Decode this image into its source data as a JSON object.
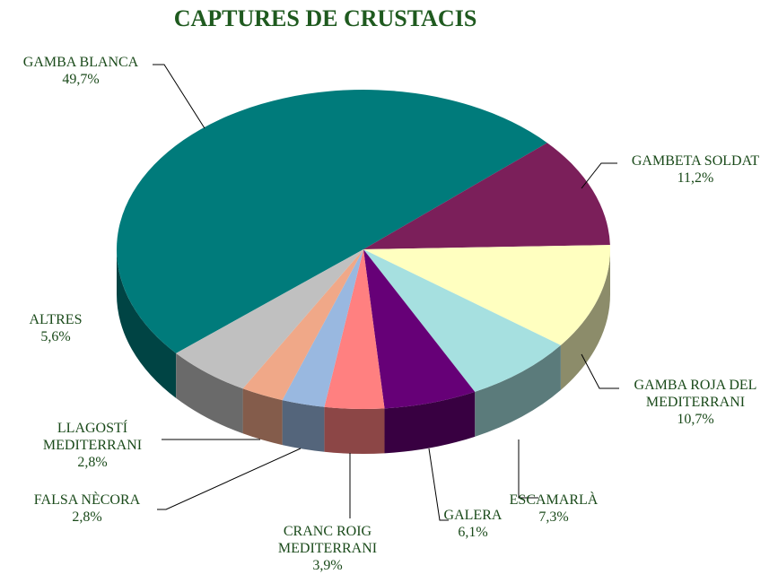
{
  "chart_data": {
    "type": "pie",
    "title": "CAPTURES DE CRUSTACIS",
    "categories": [
      "GAMBA BLANCA",
      "GAMBETA SOLDAT",
      "GAMBA ROJA DEL MEDITERRANI",
      "ESCAMARLÀ",
      "GALERA",
      "CRANC ROIG MEDITERRANI",
      "FALSA NÈCORA",
      "LLAGOSTÍ MEDITERRANI",
      "ALTRES"
    ],
    "values": [
      49.7,
      11.2,
      10.7,
      7.3,
      6.1,
      3.9,
      2.8,
      2.8,
      5.6
    ],
    "value_labels": [
      "49,7%",
      "11,2%",
      "10,7%",
      "7,3%",
      "6,1%",
      "3,9%",
      "2,8%",
      "2,8%",
      "5,6%"
    ],
    "colors": [
      "#007b7b",
      "#7b1f5a",
      "#ffffc0",
      "#a6e0e0",
      "#660077",
      "#ff8080",
      "#99b8e0",
      "#f0a888",
      "#c0c0c0"
    ]
  }
}
